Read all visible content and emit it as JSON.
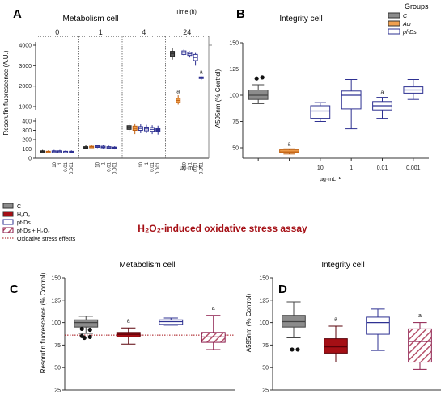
{
  "panels": {
    "A": {
      "letter": "A",
      "title": "Metabolism cell",
      "time_label": "Time (h)",
      "time_groups": [
        "0",
        "1",
        "4",
        "24"
      ],
      "ylabel": "Resorufin fluorescence (A.U.)",
      "unit": "µg·mL⁻¹",
      "conc_ticks": [
        "10",
        "1",
        "0.01",
        "0.001"
      ],
      "annotations": [
        "a",
        "a"
      ]
    },
    "B": {
      "letter": "B",
      "title": "Integrity cell",
      "ylabel": "A595nm (% Control)",
      "unit": "µg·mL⁻¹",
      "annotations": [
        "a",
        "a"
      ]
    },
    "C": {
      "letter": "C",
      "title": "Metabolism cell",
      "ylabel": "Resorufin fluorescence (% Control)",
      "annotations": [
        "a",
        "a"
      ]
    },
    "D": {
      "letter": "D",
      "title": "Integrity cell",
      "ylabel": "A595nm (% Control)",
      "annotations": [
        "a",
        "a"
      ]
    }
  },
  "legend_top": {
    "title": "Groups",
    "items": [
      {
        "label": "C",
        "color": "#8c8c8c",
        "style": "solid"
      },
      {
        "label": "Acr",
        "color": "#f0a050",
        "style": "solid"
      },
      {
        "label": "pf-Ds",
        "color": "#ffffff",
        "stroke": "#2e3192",
        "style": "open"
      }
    ]
  },
  "section_title": "H₂O₂-induced oxidative stress assay",
  "legend_bottom": {
    "items": [
      {
        "label": "C",
        "color": "#8c8c8c",
        "style": "solid"
      },
      {
        "label": "H₂O₂",
        "color": "#a50f15",
        "style": "solid"
      },
      {
        "label": "pf-Ds",
        "color": "#ffffff",
        "stroke": "#2e3192",
        "style": "open"
      },
      {
        "label": "pf-Ds + H₂O₂",
        "color": "#ffffff",
        "stroke": "#8b1a4a",
        "style": "hatched"
      },
      {
        "label": "Oxidative stress effects",
        "color": "#a50f15",
        "style": "dotted"
      }
    ]
  },
  "colors": {
    "control": "#8c8c8c",
    "acr": "#f0a050",
    "pfds": "#2e3192",
    "h2o2": "#a50f15",
    "combo": "#8b1a4a",
    "dotted_line": "#a50f15",
    "section_title": "#a50f15"
  },
  "chart_data": [
    {
      "panel": "A",
      "type": "box",
      "groups": [
        {
          "time": "0",
          "boxes": [
            {
              "name": "C",
              "min": 60,
              "q1": 70,
              "median": 75,
              "q3": 80,
              "max": 90
            },
            {
              "name": "Acr",
              "min": 55,
              "q1": 65,
              "median": 70,
              "q3": 75,
              "max": 85
            },
            {
              "name": "10",
              "min": 60,
              "q1": 70,
              "median": 75,
              "q3": 80,
              "max": 90
            },
            {
              "name": "1",
              "min": 60,
              "q1": 70,
              "median": 75,
              "q3": 80,
              "max": 90
            },
            {
              "name": "0.01",
              "min": 55,
              "q1": 65,
              "median": 70,
              "q3": 75,
              "max": 85
            },
            {
              "name": "0.001",
              "min": 55,
              "q1": 65,
              "median": 70,
              "q3": 75,
              "max": 85
            }
          ]
        },
        {
          "time": "1",
          "boxes": [
            {
              "name": "C",
              "min": 100,
              "q1": 110,
              "median": 115,
              "q3": 125,
              "max": 140
            },
            {
              "name": "Acr",
              "min": 110,
              "q1": 120,
              "median": 125,
              "q3": 130,
              "max": 145
            },
            {
              "name": "10",
              "min": 110,
              "q1": 120,
              "median": 125,
              "q3": 135,
              "max": 145
            },
            {
              "name": "1",
              "min": 105,
              "q1": 115,
              "median": 120,
              "q3": 130,
              "max": 140
            },
            {
              "name": "0.01",
              "min": 100,
              "q1": 110,
              "median": 115,
              "q3": 125,
              "max": 135
            },
            {
              "name": "0.001",
              "min": 95,
              "q1": 105,
              "median": 110,
              "q3": 120,
              "max": 130
            }
          ]
        },
        {
          "time": "4",
          "boxes": [
            {
              "name": "C",
              "min": 280,
              "q1": 310,
              "median": 330,
              "q3": 350,
              "max": 380
            },
            {
              "name": "Acr",
              "min": 260,
              "q1": 300,
              "median": 320,
              "q3": 345,
              "max": 375
            },
            {
              "name": "10",
              "min": 270,
              "q1": 300,
              "median": 320,
              "q3": 340,
              "max": 370
            },
            {
              "name": "1",
              "min": 270,
              "q1": 295,
              "median": 315,
              "q3": 335,
              "max": 360
            },
            {
              "name": "0.01",
              "min": 260,
              "q1": 290,
              "median": 310,
              "q3": 330,
              "max": 355
            },
            {
              "name": "0.001",
              "min": 255,
              "q1": 285,
              "median": 305,
              "q3": 325,
              "max": 350
            }
          ]
        },
        {
          "time": "24",
          "boxes": [
            {
              "name": "C",
              "min": 3300,
              "q1": 3450,
              "median": 3600,
              "q3": 3700,
              "max": 3850
            },
            {
              "name": "Acr",
              "min": 1100,
              "q1": 1200,
              "median": 1300,
              "q3": 1400,
              "max": 1550
            },
            {
              "name": "10",
              "min": 3500,
              "q1": 3550,
              "median": 3650,
              "q3": 3720,
              "max": 3800
            },
            {
              "name": "1",
              "min": 3400,
              "q1": 3500,
              "median": 3580,
              "q3": 3650,
              "max": 3700
            },
            {
              "name": "0.01",
              "min": 3000,
              "q1": 3250,
              "median": 3400,
              "q3": 3550,
              "max": 3620
            },
            {
              "name": "0.001",
              "min": 2300,
              "q1": 2380,
              "median": 2420,
              "q3": 2450,
              "max": 2480
            }
          ]
        }
      ],
      "ylim_upper": [
        1000,
        4000
      ],
      "yticks_upper": [
        "1000",
        "2000",
        "3000",
        "4000"
      ],
      "ylim_lower": [
        0,
        400
      ],
      "yticks_lower": [
        "0",
        "100",
        "200",
        "300",
        "400"
      ]
    },
    {
      "panel": "B",
      "type": "box",
      "categories": [
        "C",
        "Acr",
        "10",
        "1",
        "0.01",
        "0.001"
      ],
      "xtick_labels": [
        "",
        "",
        "10",
        "1",
        "0.01",
        "0.001"
      ],
      "boxes": [
        {
          "name": "C",
          "min": 92,
          "q1": 96,
          "median": 100,
          "q3": 105,
          "max": 110,
          "outliers": [
            116,
            117
          ],
          "color": "#8c8c8c"
        },
        {
          "name": "Acr",
          "min": 44,
          "q1": 45,
          "median": 46,
          "q3": 48,
          "max": 49,
          "color": "#f0a050"
        },
        {
          "name": "10",
          "min": 75,
          "q1": 78,
          "median": 85,
          "q3": 90,
          "max": 93,
          "color": "#2e3192"
        },
        {
          "name": "1",
          "min": 68,
          "q1": 87,
          "median": 100,
          "q3": 104,
          "max": 115,
          "color": "#2e3192"
        },
        {
          "name": "0.01",
          "min": 78,
          "q1": 86,
          "median": 90,
          "q3": 94,
          "max": 98,
          "color": "#2e3192"
        },
        {
          "name": "0.001",
          "min": 96,
          "q1": 102,
          "median": 105,
          "q3": 108,
          "max": 115,
          "color": "#2e3192"
        }
      ],
      "ylim": [
        40,
        150
      ],
      "yticks": [
        "50",
        "75",
        "100",
        "125",
        "150"
      ]
    },
    {
      "panel": "C",
      "type": "box",
      "categories": [
        "C",
        "H2O2",
        "pf-Ds",
        "pf-Ds + H2O2"
      ],
      "boxes": [
        {
          "name": "C",
          "min": 88,
          "q1": 95,
          "median": 100,
          "q3": 103,
          "max": 107,
          "outliers": [
            83,
            84,
            85,
            92,
            93
          ],
          "color": "#8c8c8c"
        },
        {
          "name": "H2O2",
          "min": 76,
          "q1": 84,
          "median": 87,
          "q3": 89,
          "max": 94,
          "color": "#a50f15"
        },
        {
          "name": "pf-Ds",
          "min": 97,
          "q1": 98,
          "median": 101,
          "q3": 103,
          "max": 105,
          "color": "#2e3192"
        },
        {
          "name": "pf-Ds + H2O2",
          "min": 70,
          "q1": 78,
          "median": 84,
          "q3": 89,
          "max": 108,
          "color": "#8b1a4a"
        }
      ],
      "reference_line": 86,
      "ylim": [
        25,
        150
      ],
      "yticks": [
        "25",
        "50",
        "75",
        "100",
        "125",
        "150"
      ]
    },
    {
      "panel": "D",
      "type": "box",
      "categories": [
        "C",
        "H2O2",
        "pf-Ds",
        "pf-Ds + H2O2"
      ],
      "boxes": [
        {
          "name": "C",
          "min": 83,
          "q1": 95,
          "median": 101,
          "q3": 108,
          "max": 123,
          "outliers": [
            70,
            70
          ],
          "color": "#8c8c8c"
        },
        {
          "name": "H2O2",
          "min": 56,
          "q1": 66,
          "median": 73,
          "q3": 82,
          "max": 96,
          "color": "#a50f15"
        },
        {
          "name": "pf-Ds",
          "min": 69,
          "q1": 87,
          "median": 100,
          "q3": 106,
          "max": 115,
          "color": "#2e3192"
        },
        {
          "name": "pf-Ds + H2O2",
          "min": 48,
          "q1": 56,
          "median": 79,
          "q3": 93,
          "max": 100,
          "color": "#8b1a4a"
        }
      ],
      "reference_line": 74,
      "ylim": [
        25,
        150
      ],
      "yticks": [
        "25",
        "50",
        "75",
        "100",
        "125",
        "150"
      ]
    }
  ]
}
